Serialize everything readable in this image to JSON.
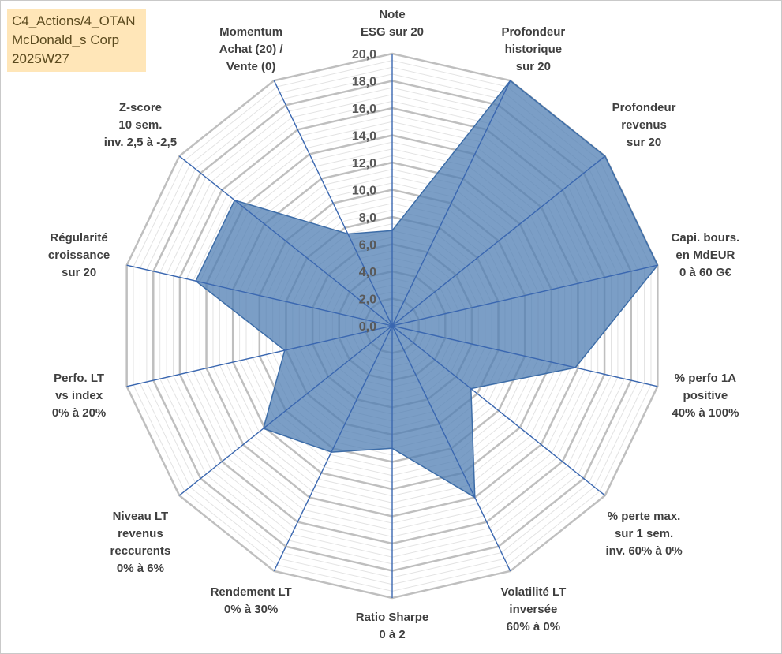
{
  "info": {
    "line1": "C4_Actions/4_OTAN",
    "line2": "McDonald_s Corp",
    "line3": "2025W27"
  },
  "colors": {
    "fill": "#4f7eb3",
    "fill_opacity": "0.75",
    "outline": "#3d6da8",
    "spoke": "#3a67b0",
    "major_grid": "#bfbfbf",
    "minor_grid": "#e3e3e3",
    "info_bg": "#ffe6b8"
  },
  "chart_data": {
    "type": "radar",
    "rmin": 0,
    "rmax": 20,
    "major_step": 2,
    "minor_step": 0.5,
    "tick_labels": [
      "0,0",
      "2,0",
      "4,0",
      "6,0",
      "8,0",
      "10,0",
      "12,0",
      "14,0",
      "16,0",
      "18,0",
      "20,0"
    ],
    "axes": [
      {
        "label": [
          "Note",
          "ESG sur 20"
        ],
        "value": 7.0
      },
      {
        "label": [
          "Profondeur",
          "historique",
          "sur 20"
        ],
        "value": 20.0
      },
      {
        "label": [
          "Profondeur",
          "revenus",
          "sur 20"
        ],
        "value": 20.0
      },
      {
        "label": [
          "Capi. bours.",
          "en MdEUR",
          "0 à 60 G€"
        ],
        "value": 20.0
      },
      {
        "label": [
          "% perfo 1A",
          "positive",
          "40% à 100%"
        ],
        "value": 13.8
      },
      {
        "label": [
          "% perte max.",
          "sur 1 sem.",
          "inv. 60% à 0%"
        ],
        "value": 7.4
      },
      {
        "label": [
          "Volatilité LT",
          "inversée",
          "60% à 0%"
        ],
        "value": 14.0
      },
      {
        "label": [
          "Ratio Sharpe",
          "0 à 2"
        ],
        "value": 9.0
      },
      {
        "label": [
          "Rendement LT",
          "0% à 30%"
        ],
        "value": 10.3
      },
      {
        "label": [
          "Niveau LT",
          "revenus",
          "reccurents",
          "0% à 6%"
        ],
        "value": 12.1
      },
      {
        "label": [
          "Perfo. LT",
          "vs index",
          "0% à 20%"
        ],
        "value": 8.1
      },
      {
        "label": [
          "Régularité",
          "croissance",
          "sur 20"
        ],
        "value": 14.8
      },
      {
        "label": [
          "Z-score",
          "10 sem.",
          "inv. 2,5 à -2,5"
        ],
        "value": 14.8
      },
      {
        "label": [
          "Momentum",
          "Achat (20) /",
          "Vente (0)"
        ],
        "value": 7.5
      }
    ]
  }
}
